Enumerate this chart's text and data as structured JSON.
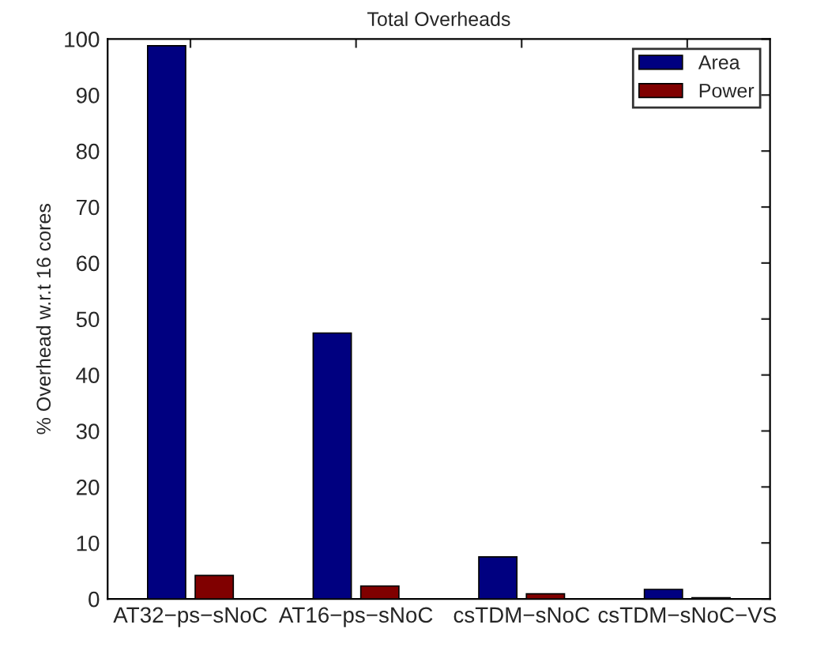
{
  "chart_data": {
    "type": "bar",
    "title": "Total Overheads",
    "ylabel": "% Overhead w.r.t 16 cores",
    "categories": [
      "AT32−ps−sNoC",
      "AT16−ps−sNoC",
      "csTDM−sNoC",
      "csTDM−sNoC−VS"
    ],
    "series": [
      {
        "name": "Area",
        "color": "#000080",
        "values": [
          98.8,
          47.5,
          7.5,
          1.7
        ]
      },
      {
        "name": "Power",
        "color": "#800000",
        "values": [
          4.2,
          2.3,
          0.9,
          0.2
        ]
      }
    ],
    "ylim": [
      0,
      100
    ],
    "yticks": [
      0,
      10,
      20,
      30,
      40,
      50,
      60,
      70,
      80,
      90,
      100
    ],
    "grid": false,
    "legend": "top right"
  }
}
